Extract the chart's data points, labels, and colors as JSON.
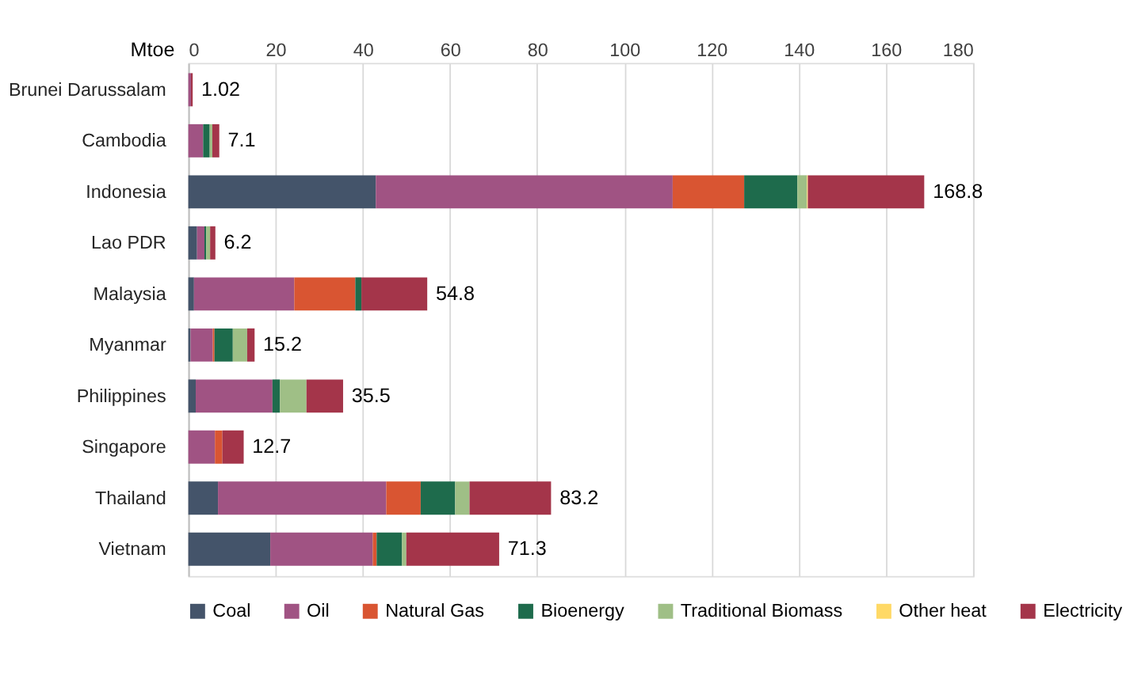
{
  "chart_data": {
    "type": "bar",
    "orientation": "horizontal",
    "stacked": true,
    "xlabel": "Mtoe",
    "categories": [
      "Brunei Darussalam",
      "Cambodia",
      "Indonesia",
      "Lao PDR",
      "Malaysia",
      "Myanmar",
      "Philippines",
      "Singapore",
      "Thailand",
      "Vietnam"
    ],
    "series": [
      {
        "name": "Coal",
        "color": "#44546a",
        "values": [
          0,
          0,
          43.0,
          2.0,
          1.3,
          0.5,
          1.7,
          0,
          6.8,
          18.8
        ]
      },
      {
        "name": "Oil",
        "color": "#a05383",
        "values": [
          0.6,
          3.4,
          68.1,
          1.7,
          23.0,
          5.1,
          17.6,
          6.1,
          38.6,
          23.5
        ]
      },
      {
        "name": "Natural Gas",
        "color": "#d95532",
        "values": [
          0,
          0,
          16.4,
          0,
          14.0,
          0.4,
          0,
          1.7,
          7.9,
          0.9
        ]
      },
      {
        "name": "Bioenergy",
        "color": "#1e6b4c",
        "values": [
          0,
          1.5,
          12.2,
          0.4,
          1.4,
          4.2,
          1.7,
          0,
          7.9,
          5.8
        ]
      },
      {
        "name": "Traditional Biomass",
        "color": "#9fbf86",
        "values": [
          0,
          0.6,
          2.2,
          0.9,
          0,
          3.3,
          6.1,
          0,
          3.3,
          1.0
        ]
      },
      {
        "name": "Other heat",
        "color": "#ffd966",
        "values": [
          0,
          0,
          0.2,
          0,
          0,
          0,
          0,
          0,
          0,
          0
        ]
      },
      {
        "name": "Electricity",
        "color": "#a4354a",
        "values": [
          0.4,
          1.6,
          26.7,
          1.2,
          15.1,
          1.7,
          8.4,
          4.9,
          18.7,
          21.3
        ]
      }
    ],
    "totals": [
      "1.02",
      "7.1",
      "168.8",
      "6.2",
      "54.8",
      "15.2",
      "35.5",
      "12.7",
      "83.2",
      "71.3"
    ],
    "xlim": [
      0,
      180
    ],
    "xticks": [
      0,
      20,
      40,
      60,
      80,
      100,
      120,
      140,
      160,
      180
    ],
    "grid": "x",
    "legend": "bottom"
  }
}
